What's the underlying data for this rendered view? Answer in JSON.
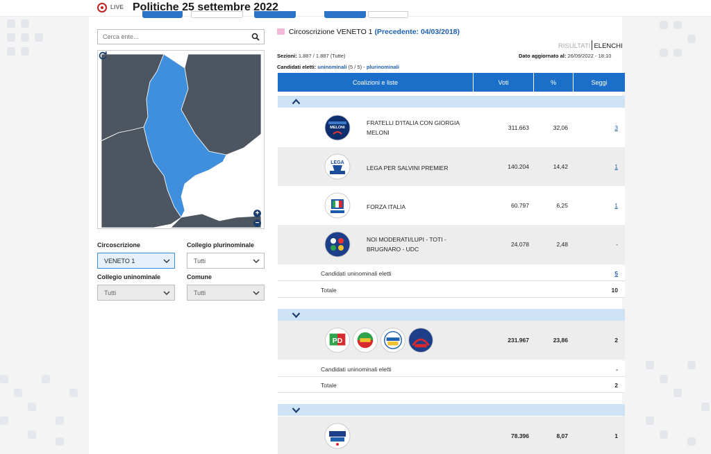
{
  "header": {
    "live_label": "LIVE",
    "title": "Politiche 25 settembre 2022"
  },
  "search": {
    "placeholder": "Cerca ente..."
  },
  "filters": {
    "circoscrizione_label": "Circoscrizione",
    "circoscrizione_value": "VENETO 1",
    "plurinominale_label": "Collegio plurinominale",
    "plurinominale_value": "Tutti",
    "uninominale_label": "Collegio uninominale",
    "uninominale_value": "Tutti",
    "comune_label": "Comune",
    "comune_value": "Tutti"
  },
  "circ": {
    "name": "Circoscrizione VENETO 1",
    "previous": "(Precedente: 04/03/2018)"
  },
  "view": {
    "results": "RISULTATI",
    "lists": "ELENCHI"
  },
  "meta": {
    "sezioni_label": "Sezioni:",
    "sezioni_value": "1.887 / 1.887 (Tutte)",
    "updated_label": "Dato aggiornato al:",
    "updated_value": "26/09/2022 - 18:10",
    "elected_label": "Candidati eletti:",
    "elected_uni_link": "uninominali",
    "elected_uni_count": "(5 / 5)",
    "elected_sep": "-",
    "elected_pluri_link": "plurinominali"
  },
  "table": {
    "columns": [
      "Coalizioni e liste",
      "Voti",
      "%",
      "Seggi"
    ]
  },
  "group1": {
    "rows": [
      {
        "party": "FRATELLI D'ITALIA CON GIORGIA MELONI",
        "votes": "311.663",
        "pct": "32,06",
        "seats": "3",
        "logo": "fratelli-italia-logo"
      },
      {
        "party": "LEGA PER SALVINI PREMIER",
        "votes": "140.204",
        "pct": "14,42",
        "seats": "1",
        "logo": "lega-logo"
      },
      {
        "party": "FORZA ITALIA",
        "votes": "60.797",
        "pct": "6,25",
        "seats": "1",
        "logo": "forza-italia-logo"
      },
      {
        "party": "NOI MODERATI/LUPI - TOTI - BRUGNARO - UDC",
        "votes": "24.078",
        "pct": "2,48",
        "seats": "-",
        "logo": "noi-moderati-logo"
      }
    ],
    "uni_label": "Candidati uninominali eletti",
    "uni_value": "5",
    "total_label": "Totale",
    "total_value": "10"
  },
  "group2": {
    "votes": "231.967",
    "pct": "23,86",
    "seats": "2",
    "uni_label": "Candidati uninominali eletti",
    "uni_value": "-",
    "total_label": "Totale",
    "total_value": "2"
  },
  "group3": {
    "votes": "78.396",
    "pct": "8,07",
    "seats": "1"
  },
  "colors": {
    "header_blue": "#1c6fc9",
    "map_highlight": "#3f8fdc",
    "map_grey": "#4d5660",
    "link_blue": "#1e5fae",
    "live_red": "#c51f1f"
  }
}
